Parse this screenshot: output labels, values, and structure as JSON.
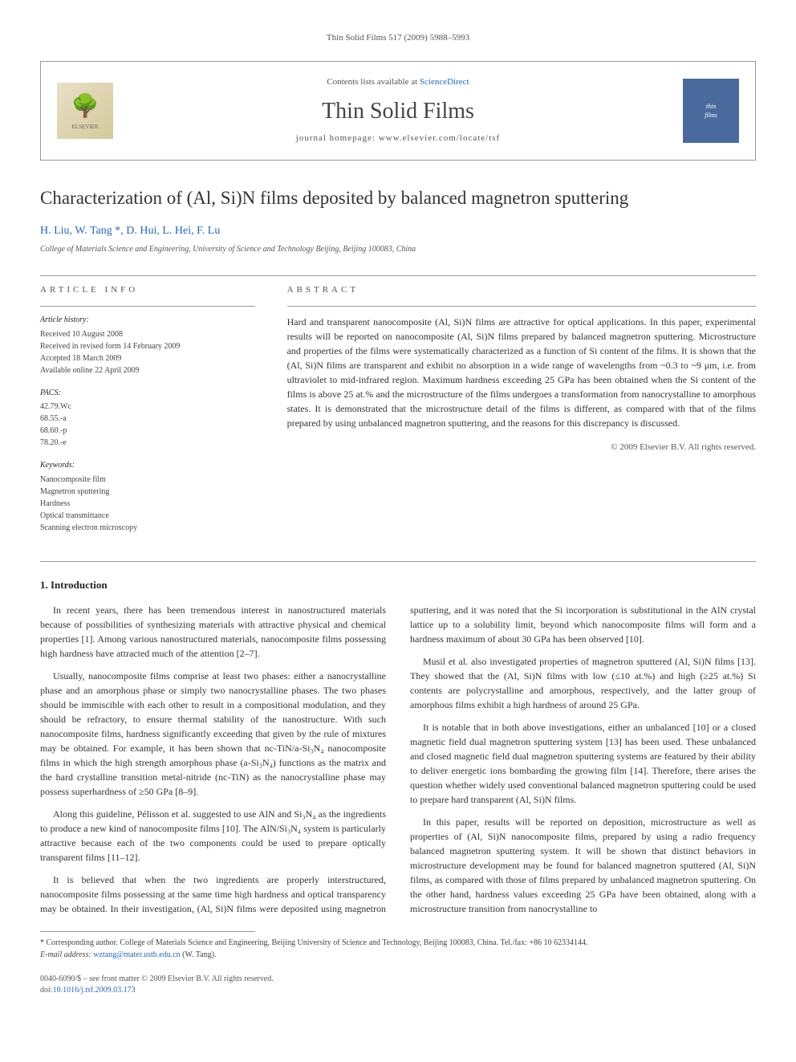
{
  "header": {
    "citation": "Thin Solid Films 517 (2009) 5988–5993"
  },
  "journal_box": {
    "publisher_logo_text": "ELSEVIER",
    "contents_prefix": "Contents lists available at ",
    "contents_link": "ScienceDirect",
    "journal_name": "Thin Solid Films",
    "homepage_prefix": "journal homepage: ",
    "homepage_url": "www.elsevier.com/locate/tsf",
    "cover_text_1": "thin",
    "cover_text_2": "films"
  },
  "article": {
    "title": "Characterization of (Al, Si)N films deposited by balanced magnetron sputtering",
    "authors_raw": "H. Liu, W. Tang *, D. Hui, L. Hei, F. Lu",
    "affiliation": "College of Materials Science and Engineering, University of Science and Technology Beijing, Beijing 100083, China"
  },
  "info": {
    "heading": "ARTICLE INFO",
    "history_label": "Article history:",
    "history": {
      "received": "Received 10 August 2008",
      "revised": "Received in revised form 14 February 2009",
      "accepted": "Accepted 18 March 2009",
      "online": "Available online 22 April 2009"
    },
    "pacs_label": "PACS:",
    "pacs": [
      "42.79.Wc",
      "68.55.-a",
      "68.60.-p",
      "78.20.-e"
    ],
    "keywords_label": "Keywords:",
    "keywords": [
      "Nanocomposite film",
      "Magnetron sputtering",
      "Hardness",
      "Optical transmittance",
      "Scanning electron microscopy"
    ]
  },
  "abstract": {
    "heading": "ABSTRACT",
    "text": "Hard and transparent nanocomposite (Al, Si)N films are attractive for optical applications. In this paper, experimental results will be reported on nanocomposite (Al, Si)N films prepared by balanced magnetron sputtering. Microstructure and properties of the films were systematically characterized as a function of Si content of the films. It is shown that the (Al, Si)N films are transparent and exhibit no absorption in a wide range of wavelengths from ~0.3 to ~9 μm, i.e. from ultraviolet to mid-infrared region. Maximum hardness exceeding 25 GPa has been obtained when the Si content of the films is above 25 at.% and the microstructure of the films undergoes a transformation from nanocrystalline to amorphous states. It is demonstrated that the microstructure detail of the films is different, as compared with that of the films prepared by using unbalanced magnetron sputtering, and the reasons for this discrepancy is discussed.",
    "copyright": "© 2009 Elsevier B.V. All rights reserved."
  },
  "body": {
    "heading": "1. Introduction",
    "p1": "In recent years, there has been tremendous interest in nanostructured materials because of possibilities of synthesizing materials with attractive physical and chemical properties [1]. Among various nanostructured materials, nanocomposite films possessing high hardness have attracted much of the attention [2–7].",
    "p2": "Usually, nanocomposite films comprise at least two phases: either a nanocrystalline phase and an amorphous phase or simply two nanocrystalline phases. The two phases should be immiscible with each other to result in a compositional modulation, and they should be refractory, to ensure thermal stability of the nanostructure. With such nanocomposite films, hardness significantly exceeding that given by the rule of mixtures may be obtained. For example, it has been shown that nc-TiN/a-Si₃N₄ nanocomposite films in which the high strength amorphous phase (a-Si₃N₄) functions as the matrix and the hard crystalline transition metal-nitride (nc-TiN) as the nanocrystalline phase may possess superhardness of ≥50 GPa [8–9].",
    "p3": "Along this guideline, Pélisson et al. suggested to use AlN and Si₃N₄ as the ingredients to produce a new kind of nanocomposite films [10]. The AlN/Si₃N₄ system is particularly attractive because each of the two components could be used to prepare optically transparent films [11–12].",
    "p4": "It is believed that when the two ingredients are properly interstructured, nanocomposite films possessing at the same time high hardness and optical transparency may be obtained. In their investigation, (Al, Si)N films were deposited using magnetron sputtering, and it was noted that the Si incorporation is substitutional in the AlN crystal lattice up to a solubility limit, beyond which nanocomposite films will form and a hardness maximum of about 30 GPa has been observed [10].",
    "p5": "Musil et al. also investigated properties of magnetron sputtered (Al, Si)N films [13]. They showed that the (Al, Si)N films with low (≤10 at.%) and high (≥25 at.%) Si contents are polycrystalline and amorphous, respectively, and the latter group of amorphous films exhibit a high hardness of around 25 GPa.",
    "p6": "It is notable that in both above investigations, either an unbalanced [10] or a closed magnetic field dual magnetron sputtering system [13] has been used. These unbalanced and closed magnetic field dual magnetron sputtering systems are featured by their ability to deliver energetic ions bombarding the growing film [14]. Therefore, there arises the question whether widely used conventional balanced magnetron sputtering could be used to prepare hard transparent (Al, Si)N films.",
    "p7": "In this paper, results will be reported on deposition, microstructure as well as properties of (Al, Si)N nanocomposite films, prepared by using a radio frequency balanced magnetron sputtering system. It will be shown that distinct behaviors in microstructure development may be found for balanced magnetron sputtered (Al, Si)N films, as compared with those of films prepared by unbalanced magnetron sputtering. On the other hand, hardness values exceeding 25 GPa have been obtained, along with a microstructure transition from nanocrystalline to"
  },
  "footnote": {
    "marker": "*",
    "text": "Corresponding author. College of Materials Science and Engineering, Beijing University of Science and Technology, Beijing 100083, China. Tel./fax: +86 10 62334144.",
    "email_label": "E-mail address:",
    "email": "wztang@mater.ustb.edu.cn",
    "email_person": "(W. Tang)."
  },
  "footer": {
    "line1": "0040-6090/$ – see front matter © 2009 Elsevier B.V. All rights reserved.",
    "doi_prefix": "doi:",
    "doi": "10.1016/j.tsf.2009.03.173"
  },
  "colors": {
    "link": "#2968b0",
    "rule": "#999999",
    "text": "#333333",
    "muted": "#555555",
    "cover_bg": "#4a6a9e"
  }
}
